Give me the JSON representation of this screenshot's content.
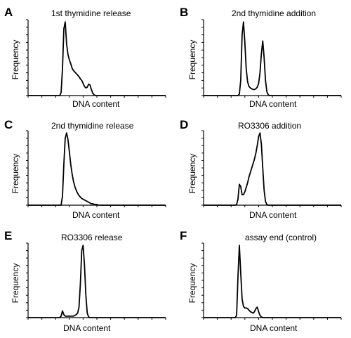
{
  "chart_data": [
    {
      "id": "A",
      "type": "line",
      "title": "1st thymidine release",
      "xlabel": "DNA content",
      "ylabel": "Frequency",
      "x": [
        0,
        1,
        2,
        3,
        4,
        5,
        6,
        7,
        8,
        9,
        10,
        11,
        12,
        13,
        14,
        15,
        16,
        17,
        18,
        19,
        20,
        21,
        22,
        23,
        24,
        25,
        26,
        27,
        28,
        29,
        30,
        31,
        32,
        33,
        34,
        35,
        36,
        37,
        38,
        39,
        40,
        41,
        42,
        43,
        44,
        45,
        46,
        47,
        48,
        49,
        50,
        51,
        52,
        53,
        54,
        55,
        56,
        57,
        58,
        59,
        60,
        61,
        62,
        63,
        64,
        65,
        66,
        67,
        68,
        69,
        70,
        71,
        72,
        73,
        74,
        75,
        76,
        77,
        78,
        79,
        80,
        81,
        82,
        83,
        84,
        85,
        86,
        87,
        88,
        89,
        90,
        91,
        92,
        93,
        94,
        95,
        96,
        97,
        98,
        99,
        100
      ],
      "series": [
        {
          "values": [
            0,
            0,
            0,
            0,
            0,
            0,
            0,
            0,
            0,
            0,
            0,
            0,
            0,
            0,
            0,
            0,
            0,
            0,
            0,
            0,
            0,
            0,
            0,
            0,
            4,
            35,
            88,
            97,
            68,
            54,
            47,
            42,
            36,
            33,
            31,
            29,
            27,
            25,
            22,
            20,
            16,
            12,
            10,
            11,
            15,
            14,
            8,
            3,
            1,
            0,
            0,
            0,
            0,
            0,
            0,
            0,
            0,
            0,
            0,
            0,
            0,
            0,
            0,
            0,
            0,
            0,
            0,
            0,
            0,
            0,
            0,
            0,
            0,
            0,
            0,
            0,
            0,
            0,
            0,
            0,
            0,
            0,
            0,
            0,
            0,
            0,
            0,
            0,
            0,
            0,
            0,
            0,
            0,
            0,
            0,
            0,
            0,
            0,
            0,
            0,
            0
          ]
        }
      ]
    },
    {
      "id": "B",
      "type": "line",
      "title": "2nd thymidine addition",
      "xlabel": "DNA content",
      "ylabel": "Frequency",
      "x": [
        0,
        1,
        2,
        3,
        4,
        5,
        6,
        7,
        8,
        9,
        10,
        11,
        12,
        13,
        14,
        15,
        16,
        17,
        18,
        19,
        20,
        21,
        22,
        23,
        24,
        25,
        26,
        27,
        28,
        29,
        30,
        31,
        32,
        33,
        34,
        35,
        36,
        37,
        38,
        39,
        40,
        41,
        42,
        43,
        44,
        45,
        46,
        47,
        48,
        49,
        50,
        51,
        52,
        53,
        54,
        55,
        56,
        57,
        58,
        59,
        60,
        61,
        62,
        63,
        64,
        65,
        66,
        67,
        68,
        69,
        70,
        71,
        72,
        73,
        74,
        75,
        76,
        77,
        78,
        79,
        80,
        81,
        82,
        83,
        84,
        85,
        86,
        87,
        88,
        89,
        90,
        91,
        92,
        93,
        94,
        95,
        96,
        97,
        98,
        99,
        100
      ],
      "series": [
        {
          "values": [
            0,
            0,
            0,
            0,
            0,
            0,
            0,
            0,
            0,
            0,
            0,
            0,
            0,
            0,
            0,
            0,
            0,
            0,
            0,
            0,
            0,
            0,
            0,
            0,
            0,
            0,
            2,
            20,
            80,
            97,
            70,
            35,
            18,
            12,
            10,
            9,
            8,
            8,
            9,
            11,
            16,
            30,
            55,
            72,
            50,
            20,
            5,
            1,
            0,
            0,
            0,
            0,
            0,
            0,
            0,
            0,
            0,
            0,
            0,
            0,
            0,
            0,
            0,
            0,
            0,
            0,
            0,
            0,
            0,
            0,
            0,
            0,
            0,
            0,
            0,
            0,
            0,
            0,
            0,
            0,
            0,
            0,
            0,
            0,
            0,
            0,
            0,
            0,
            0,
            0,
            0,
            0,
            0,
            0,
            0,
            0,
            0,
            0,
            0,
            0,
            0
          ]
        }
      ]
    },
    {
      "id": "C",
      "type": "line",
      "title": "2nd thymidine release",
      "xlabel": "DNA content",
      "ylabel": "Frequency",
      "x": [
        0,
        1,
        2,
        3,
        4,
        5,
        6,
        7,
        8,
        9,
        10,
        11,
        12,
        13,
        14,
        15,
        16,
        17,
        18,
        19,
        20,
        21,
        22,
        23,
        24,
        25,
        26,
        27,
        28,
        29,
        30,
        31,
        32,
        33,
        34,
        35,
        36,
        37,
        38,
        39,
        40,
        41,
        42,
        43,
        44,
        45,
        46,
        47,
        48,
        49,
        50,
        51,
        52,
        53,
        54,
        55,
        56,
        57,
        58,
        59,
        60,
        61,
        62,
        63,
        64,
        65,
        66,
        67,
        68,
        69,
        70,
        71,
        72,
        73,
        74,
        75,
        76,
        77,
        78,
        79,
        80,
        81,
        82,
        83,
        84,
        85,
        86,
        87,
        88,
        89,
        90,
        91,
        92,
        93,
        94,
        95,
        96,
        97,
        98,
        99,
        100
      ],
      "series": [
        {
          "values": [
            0,
            0,
            0,
            0,
            0,
            0,
            0,
            0,
            0,
            0,
            0,
            0,
            0,
            0,
            0,
            0,
            0,
            0,
            0,
            0,
            0,
            0,
            0,
            0,
            0,
            12,
            55,
            90,
            97,
            88,
            72,
            55,
            42,
            32,
            25,
            20,
            16,
            13,
            11,
            9,
            8,
            7,
            6,
            5,
            4,
            3,
            2,
            2,
            1,
            1,
            1,
            0,
            0,
            0,
            0,
            0,
            0,
            0,
            0,
            0,
            0,
            0,
            0,
            0,
            0,
            0,
            0,
            0,
            0,
            0,
            0,
            0,
            0,
            0,
            0,
            0,
            0,
            0,
            0,
            0,
            0,
            0,
            0,
            0,
            0,
            0,
            0,
            0,
            0,
            0,
            0,
            0,
            0,
            0,
            0,
            0,
            0,
            0,
            0,
            0,
            0
          ]
        }
      ]
    },
    {
      "id": "D",
      "type": "line",
      "title": "RO3306 addition",
      "xlabel": "DNA content",
      "ylabel": "Frequency",
      "x": [
        0,
        1,
        2,
        3,
        4,
        5,
        6,
        7,
        8,
        9,
        10,
        11,
        12,
        13,
        14,
        15,
        16,
        17,
        18,
        19,
        20,
        21,
        22,
        23,
        24,
        25,
        26,
        27,
        28,
        29,
        30,
        31,
        32,
        33,
        34,
        35,
        36,
        37,
        38,
        39,
        40,
        41,
        42,
        43,
        44,
        45,
        46,
        47,
        48,
        49,
        50,
        51,
        52,
        53,
        54,
        55,
        56,
        57,
        58,
        59,
        60,
        61,
        62,
        63,
        64,
        65,
        66,
        67,
        68,
        69,
        70,
        71,
        72,
        73,
        74,
        75,
        76,
        77,
        78,
        79,
        80,
        81,
        82,
        83,
        84,
        85,
        86,
        87,
        88,
        89,
        90,
        91,
        92,
        93,
        94,
        95,
        96,
        97,
        98,
        99,
        100
      ],
      "series": [
        {
          "values": [
            0,
            0,
            0,
            0,
            0,
            0,
            0,
            0,
            0,
            0,
            0,
            0,
            0,
            0,
            0,
            0,
            0,
            0,
            0,
            0,
            0,
            0,
            0,
            0,
            1,
            8,
            28,
            25,
            14,
            14,
            18,
            24,
            30,
            38,
            44,
            50,
            56,
            62,
            70,
            80,
            92,
            97,
            82,
            50,
            20,
            5,
            1,
            0,
            0,
            0,
            0,
            0,
            0,
            0,
            0,
            0,
            0,
            0,
            0,
            0,
            0,
            0,
            0,
            0,
            0,
            0,
            0,
            0,
            0,
            0,
            0,
            0,
            0,
            0,
            0,
            0,
            0,
            0,
            0,
            0,
            0,
            0,
            0,
            0,
            0,
            0,
            0,
            0,
            0,
            0,
            0,
            0,
            0,
            0,
            0,
            0,
            0,
            0,
            0,
            0,
            0
          ]
        }
      ]
    },
    {
      "id": "E",
      "type": "line",
      "title": "RO3306 release",
      "xlabel": "DNA content",
      "ylabel": "Frequency",
      "x": [
        0,
        1,
        2,
        3,
        4,
        5,
        6,
        7,
        8,
        9,
        10,
        11,
        12,
        13,
        14,
        15,
        16,
        17,
        18,
        19,
        20,
        21,
        22,
        23,
        24,
        25,
        26,
        27,
        28,
        29,
        30,
        31,
        32,
        33,
        34,
        35,
        36,
        37,
        38,
        39,
        40,
        41,
        42,
        43,
        44,
        45,
        46,
        47,
        48,
        49,
        50,
        51,
        52,
        53,
        54,
        55,
        56,
        57,
        58,
        59,
        60,
        61,
        62,
        63,
        64,
        65,
        66,
        67,
        68,
        69,
        70,
        71,
        72,
        73,
        74,
        75,
        76,
        77,
        78,
        79,
        80,
        81,
        82,
        83,
        84,
        85,
        86,
        87,
        88,
        89,
        90,
        91,
        92,
        93,
        94,
        95,
        96,
        97,
        98,
        99,
        100
      ],
      "series": [
        {
          "values": [
            0,
            0,
            0,
            0,
            0,
            0,
            0,
            0,
            0,
            0,
            0,
            0,
            0,
            0,
            0,
            0,
            0,
            0,
            0,
            0,
            0,
            0,
            0,
            0,
            2,
            9,
            4,
            2,
            2,
            2,
            2,
            2,
            2,
            2,
            3,
            4,
            6,
            14,
            45,
            90,
            97,
            70,
            30,
            6,
            1,
            0,
            0,
            0,
            0,
            0,
            0,
            0,
            0,
            0,
            0,
            0,
            0,
            0,
            0,
            0,
            0,
            0,
            0,
            0,
            0,
            0,
            0,
            0,
            0,
            0,
            0,
            0,
            0,
            0,
            0,
            0,
            0,
            0,
            0,
            0,
            0,
            0,
            0,
            0,
            0,
            0,
            0,
            0,
            0,
            0,
            0,
            0,
            0,
            0,
            0,
            0,
            0,
            0,
            0,
            0,
            0
          ]
        }
      ]
    },
    {
      "id": "F",
      "type": "line",
      "title": "assay end (control)",
      "xlabel": "DNA content",
      "ylabel": "Frequency",
      "x": [
        0,
        1,
        2,
        3,
        4,
        5,
        6,
        7,
        8,
        9,
        10,
        11,
        12,
        13,
        14,
        15,
        16,
        17,
        18,
        19,
        20,
        21,
        22,
        23,
        24,
        25,
        26,
        27,
        28,
        29,
        30,
        31,
        32,
        33,
        34,
        35,
        36,
        37,
        38,
        39,
        40,
        41,
        42,
        43,
        44,
        45,
        46,
        47,
        48,
        49,
        50,
        51,
        52,
        53,
        54,
        55,
        56,
        57,
        58,
        59,
        60,
        61,
        62,
        63,
        64,
        65,
        66,
        67,
        68,
        69,
        70,
        71,
        72,
        73,
        74,
        75,
        76,
        77,
        78,
        79,
        80,
        81,
        82,
        83,
        84,
        85,
        86,
        87,
        88,
        89,
        90,
        91,
        92,
        93,
        94,
        95,
        96,
        97,
        98,
        99,
        100
      ],
      "series": [
        {
          "values": [
            0,
            0,
            0,
            0,
            0,
            0,
            0,
            0,
            0,
            0,
            0,
            0,
            0,
            0,
            0,
            0,
            0,
            0,
            0,
            0,
            0,
            0,
            0,
            0,
            3,
            55,
            97,
            60,
            25,
            15,
            13,
            13,
            12,
            10,
            8,
            7,
            6,
            8,
            12,
            14,
            8,
            3,
            1,
            0,
            0,
            0,
            0,
            0,
            0,
            0,
            0,
            0,
            0,
            0,
            0,
            0,
            0,
            0,
            0,
            0,
            0,
            0,
            0,
            0,
            0,
            0,
            0,
            0,
            0,
            0,
            0,
            0,
            0,
            0,
            0,
            0,
            0,
            0,
            0,
            0,
            0,
            0,
            0,
            0,
            0,
            0,
            0,
            0,
            0,
            0,
            0,
            0,
            0,
            0,
            0,
            0,
            0,
            0,
            0,
            0,
            0
          ]
        }
      ]
    }
  ]
}
